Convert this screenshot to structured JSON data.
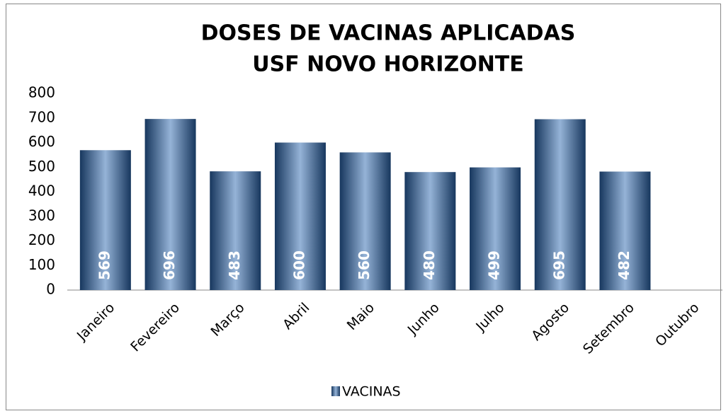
{
  "chart_data": {
    "type": "bar",
    "title": "DOSES DE VACINAS APLICADAS",
    "subtitle": "USF NOVO HORIZONTE",
    "categories": [
      "Janeiro",
      "Fevereiro",
      "Março",
      "Abril",
      "Maio",
      "Junho",
      "Julho",
      "Agosto",
      "Setembro",
      "Outubro"
    ],
    "series": [
      {
        "name": "VACINAS",
        "color": "#95b3d7",
        "values": [
          569,
          696,
          483,
          600,
          560,
          480,
          499,
          695,
          482,
          null
        ]
      }
    ],
    "ylim": [
      0,
      800
    ],
    "yticks": [
      0,
      100,
      200,
      300,
      400,
      500,
      600,
      700,
      800
    ],
    "grid": false,
    "legend": "bottom"
  }
}
